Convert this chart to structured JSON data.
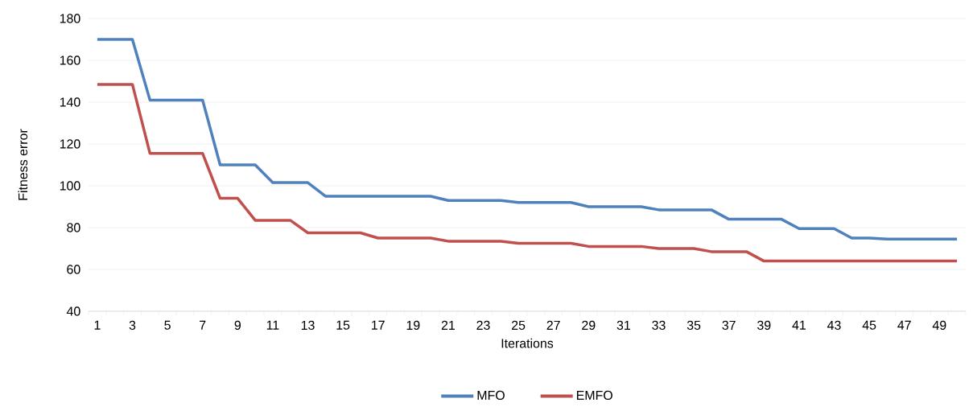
{
  "chart_data": {
    "type": "line",
    "xlabel": "Iterations",
    "ylabel": "Fitness error",
    "categories": [
      "1",
      null,
      "3",
      null,
      "5",
      null,
      "7",
      null,
      "9",
      null,
      "11",
      null,
      "13",
      null,
      "15",
      null,
      "17",
      null,
      "19",
      null,
      "21",
      null,
      "23",
      null,
      "25",
      null,
      "27",
      null,
      "29",
      null,
      "31",
      null,
      "33",
      null,
      "35",
      null,
      "37",
      null,
      "39",
      null,
      "41",
      null,
      "43",
      null,
      "45",
      null,
      "47",
      null,
      "49",
      null
    ],
    "series": [
      {
        "name": "MFO",
        "color": "#4f81bd",
        "values": [
          170,
          170,
          170,
          141,
          141,
          141,
          141,
          110,
          110,
          110,
          101.5,
          101.5,
          101.5,
          95,
          95,
          95,
          95,
          95,
          95,
          95,
          93,
          93,
          93,
          93,
          92,
          92,
          92,
          92,
          90,
          90,
          90,
          90,
          88.5,
          88.5,
          88.5,
          88.5,
          84,
          84,
          84,
          84,
          79.5,
          79.5,
          79.5,
          75,
          75,
          74.5,
          74.5,
          74.5,
          74.5,
          74.5
        ]
      },
      {
        "name": "EMFO",
        "color": "#c0504d",
        "values": [
          148.5,
          148.5,
          148.5,
          115.5,
          115.5,
          115.5,
          115.5,
          94,
          94,
          83.5,
          83.5,
          83.5,
          77.5,
          77.5,
          77.5,
          77.5,
          75,
          75,
          75,
          75,
          73.5,
          73.5,
          73.5,
          73.5,
          72.5,
          72.5,
          72.5,
          72.5,
          71,
          71,
          71,
          71,
          70,
          70,
          70,
          68.5,
          68.5,
          68.5,
          64,
          64,
          64,
          64,
          64,
          64,
          64,
          64,
          64,
          64,
          64,
          64
        ]
      }
    ],
    "ylim": [
      40,
      180
    ],
    "yticks": [
      40,
      60,
      80,
      100,
      120,
      140,
      160,
      180
    ],
    "grid": "y",
    "legend": "bottom"
  }
}
